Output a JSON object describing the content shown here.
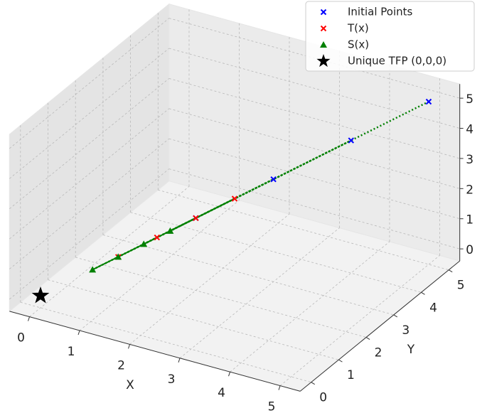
{
  "chart_data": {
    "type": "scatter3d",
    "xlabel": "X",
    "ylabel": "Y",
    "xlim": [
      -0.4,
      5.4
    ],
    "ylim": [
      -0.4,
      5.4
    ],
    "zlim": [
      -0.4,
      5.47
    ],
    "xticks": [
      0,
      1,
      2,
      3,
      4,
      5
    ],
    "yticks": [
      0,
      1,
      2,
      3,
      4,
      5
    ],
    "zticks": [
      0,
      1,
      2,
      3,
      4,
      5
    ],
    "grid": true,
    "legend": "upper right",
    "series": [
      {
        "name": "Initial Points",
        "color": "#0000ff",
        "marker": "x",
        "x": [
          2,
          3,
          4,
          5
        ],
        "y": [
          2,
          3,
          4,
          5
        ],
        "z": [
          2,
          3,
          4,
          5
        ]
      },
      {
        "name": "T(x)",
        "color": "#ff0000",
        "marker": "x",
        "x": [
          1,
          1.5,
          2,
          2.5
        ],
        "y": [
          1,
          1.5,
          2,
          2.5
        ],
        "z": [
          1,
          1.5,
          2,
          2.5
        ]
      },
      {
        "name": "S(x)",
        "color": "#008000",
        "marker": "triangle",
        "x": [
          0.67,
          1,
          1.33,
          1.67
        ],
        "y": [
          0.67,
          1,
          1.33,
          1.67
        ],
        "z": [
          0.67,
          1,
          1.33,
          1.67
        ]
      },
      {
        "name": "Unique TFP (0,0,0)",
        "color": "#000000",
        "marker": "star",
        "x": [
          0
        ],
        "y": [
          0
        ],
        "z": [
          0
        ]
      }
    ]
  }
}
